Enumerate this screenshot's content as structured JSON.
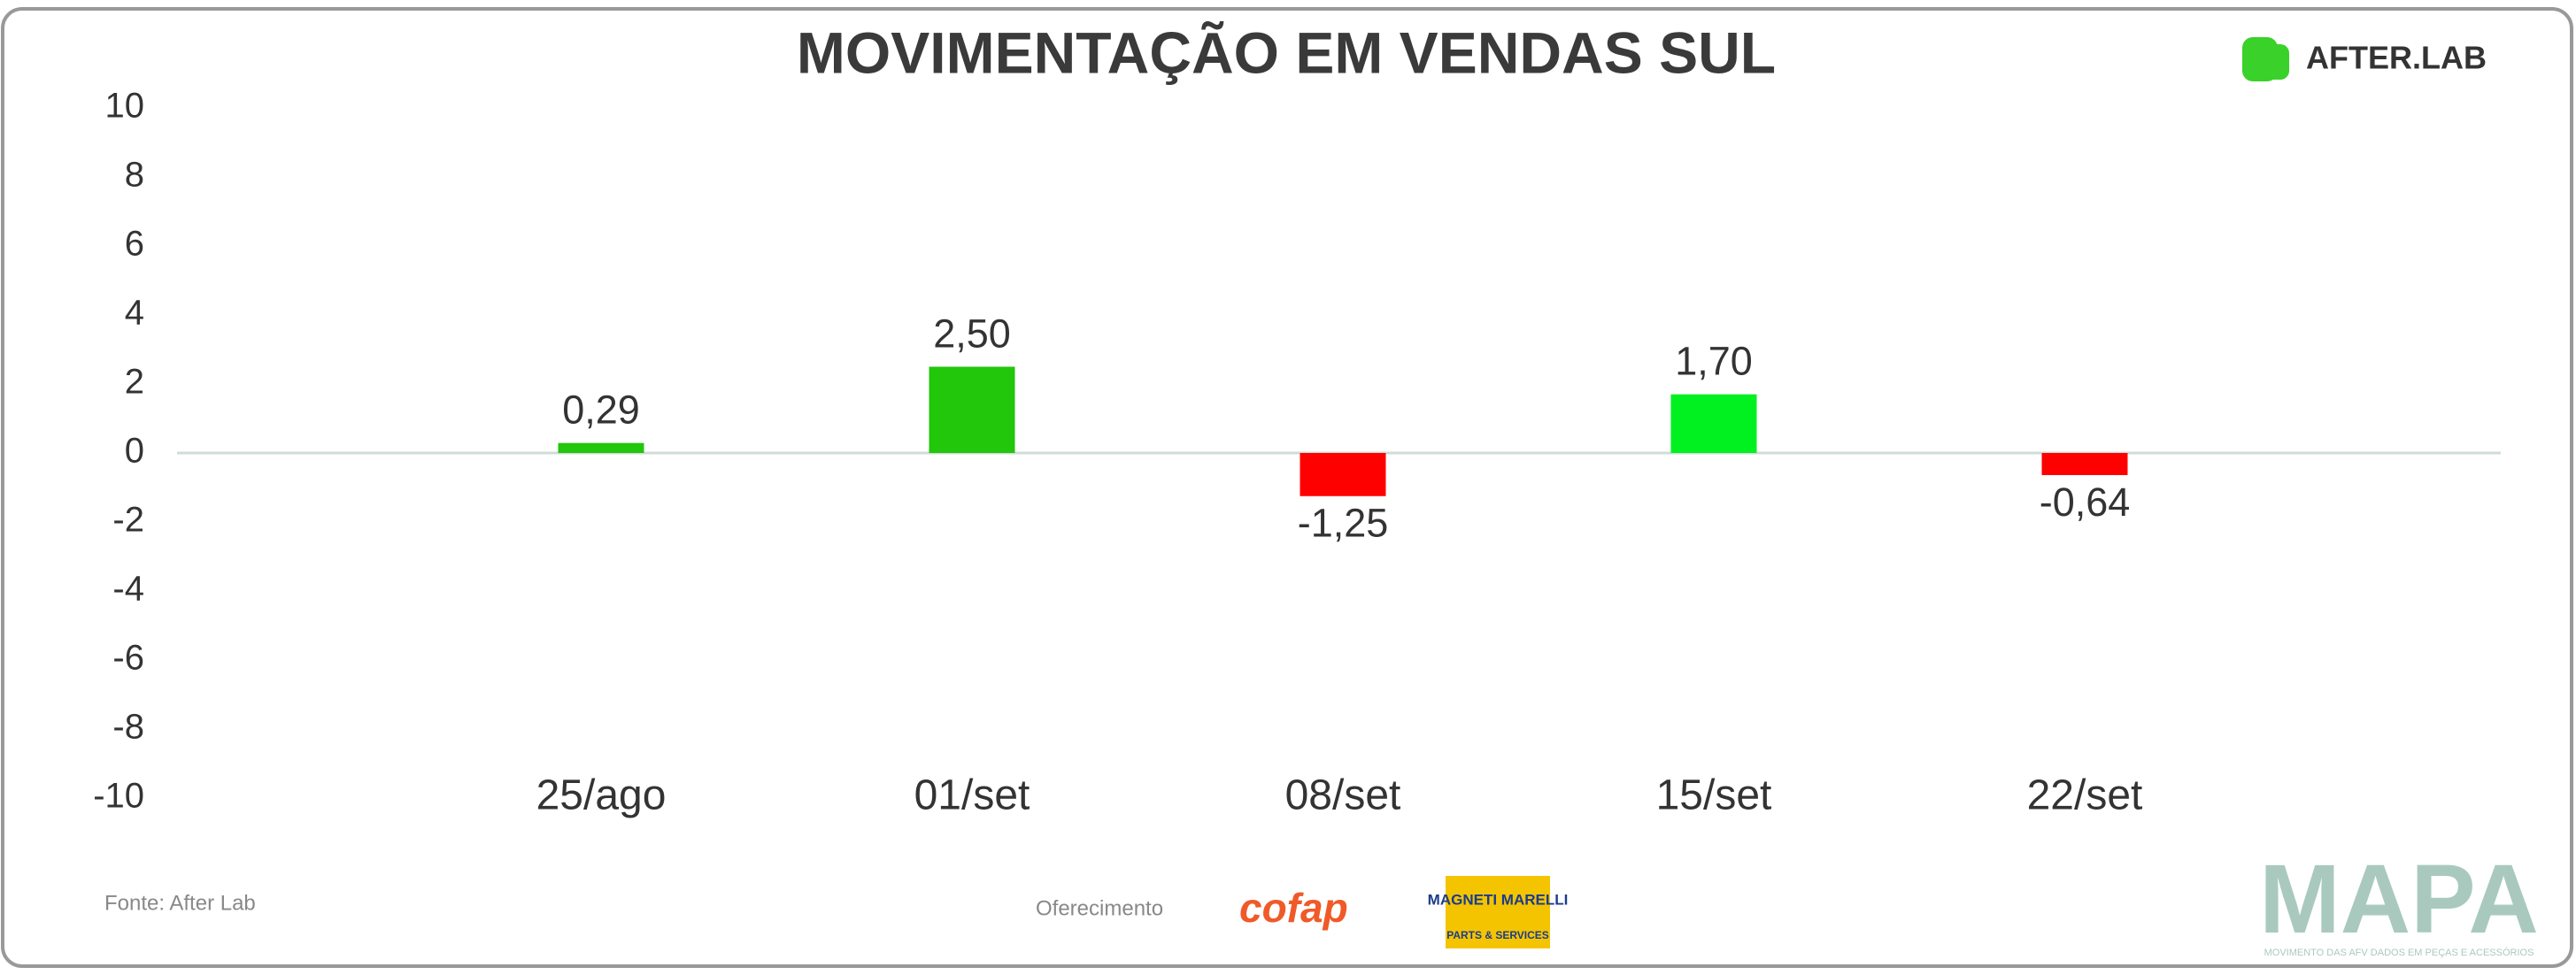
{
  "chart_data": {
    "type": "bar",
    "title": "MOVIMENTAÇÃO EM VENDAS SUL",
    "categories": [
      "25/ago",
      "01/set",
      "08/set",
      "15/set",
      "22/set"
    ],
    "values": [
      0.29,
      2.5,
      -1.25,
      1.7,
      -0.64
    ],
    "value_labels": [
      "0,29",
      "2,50",
      "-1,25",
      "1,70",
      "-0,64"
    ],
    "colors": [
      "#22c60a",
      "#22c60a",
      "#ff0000",
      "#00f020",
      "#ff0000"
    ],
    "ylim": [
      -10,
      10
    ],
    "yticks": [
      -10,
      -8,
      -6,
      -4,
      -2,
      0,
      2,
      4,
      6,
      8,
      10
    ],
    "source": "Fonte: After Lab",
    "sponsor": "Oferecimento",
    "brand": "AFTER.LAB",
    "sponsor_logos": [
      "cofap",
      "MAGNETI MARELLI",
      "PARTS & SERVICES"
    ],
    "mapa": "MAPA",
    "mapa_tagline": "MOVIMENTO DAS AFV DADOS EM PEÇAS E ACESSÓRIOS"
  }
}
